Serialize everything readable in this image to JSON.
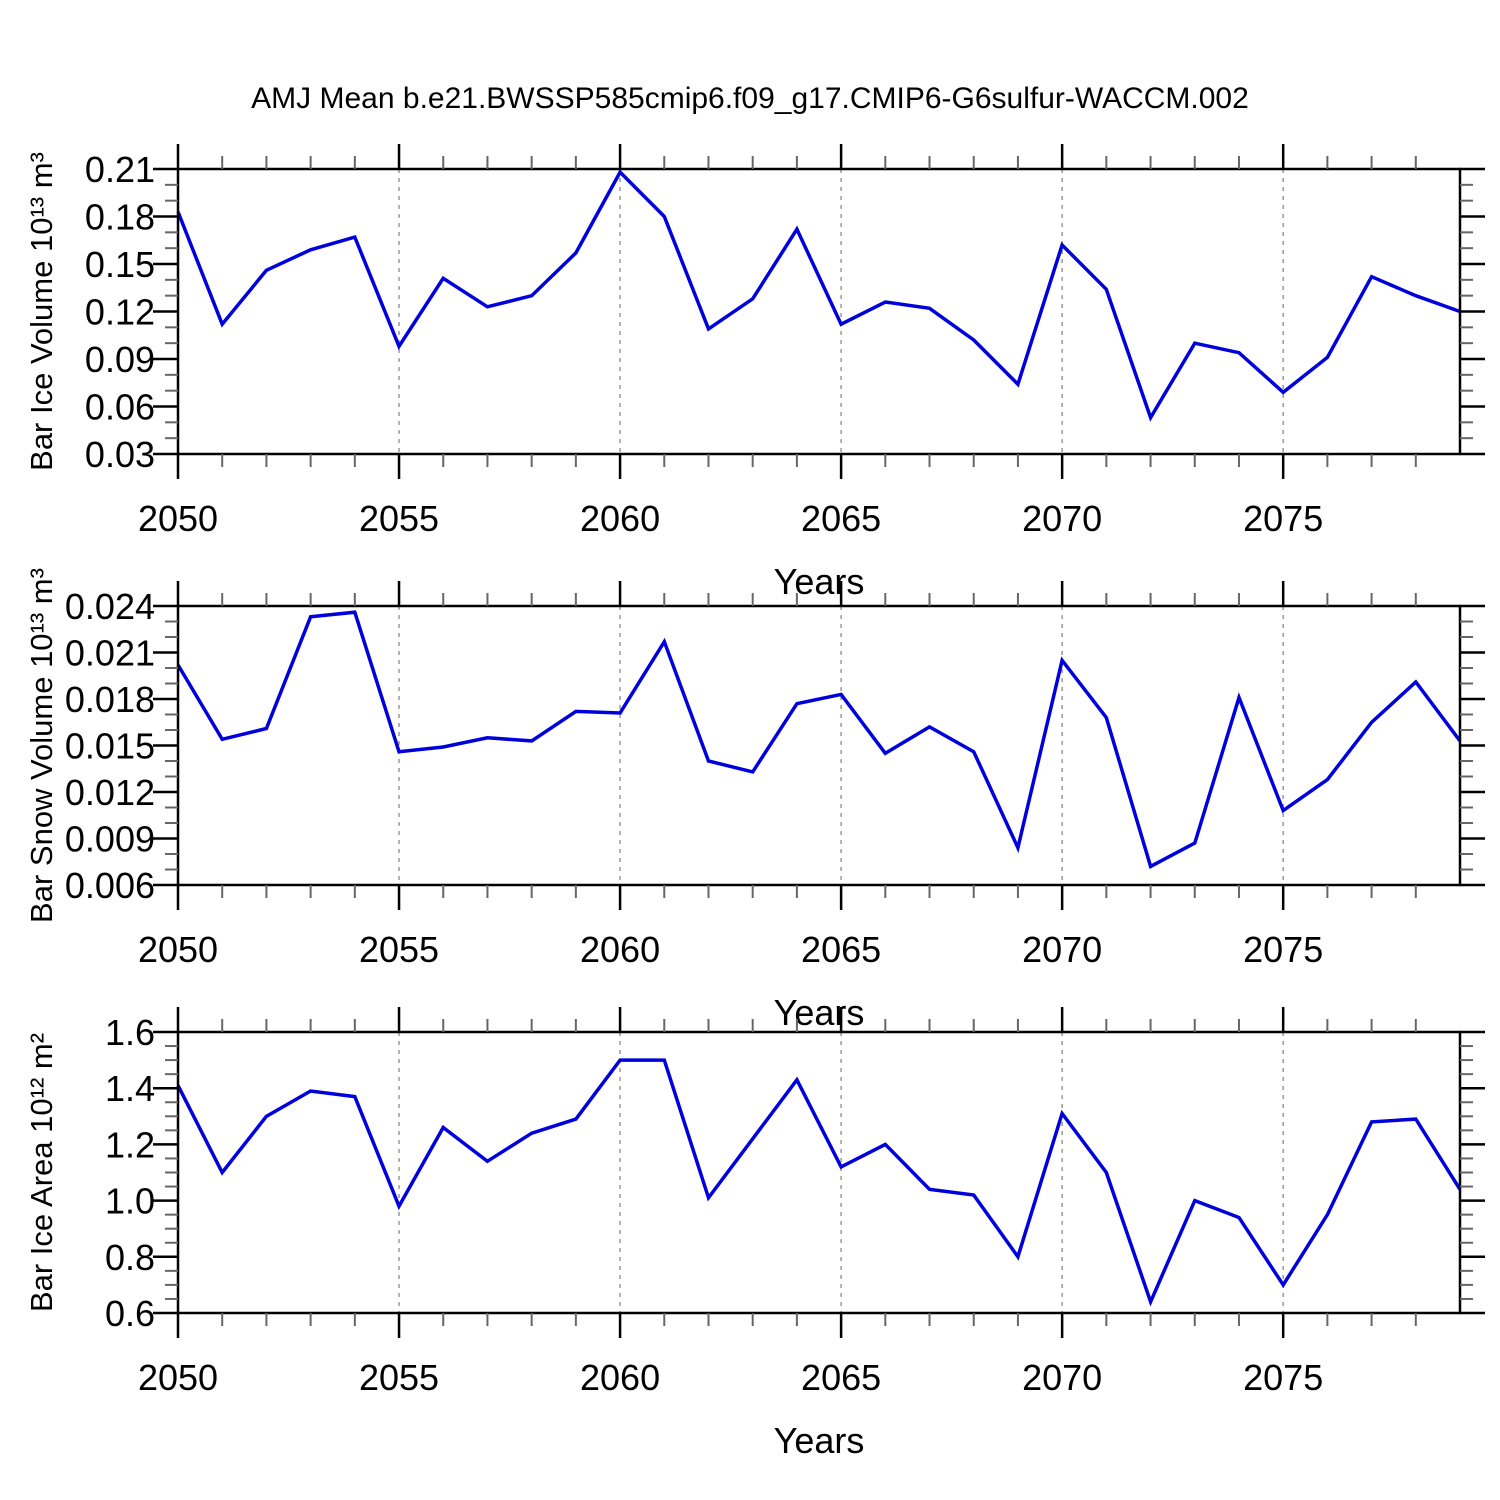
{
  "title": "AMJ Mean b.e21.BWSSP585cmip6.f09_g17.CMIP6-G6sulfur-WACCM.002",
  "colors": {
    "line": "#0000dd",
    "grid": "#999999",
    "axis": "#000000",
    "minor_tick": "#666666",
    "background": "#ffffff"
  },
  "chart_data": [
    {
      "type": "line",
      "name": "panel-ice-volume",
      "xlabel": "Years",
      "ylabel": "Bar Ice Volume 10¹³ m³",
      "x": [
        2050,
        2051,
        2052,
        2053,
        2054,
        2055,
        2056,
        2057,
        2058,
        2059,
        2060,
        2061,
        2062,
        2063,
        2064,
        2065,
        2066,
        2067,
        2068,
        2069,
        2070,
        2071,
        2072,
        2073,
        2074,
        2075,
        2076,
        2077,
        2078,
        2079
      ],
      "values": [
        0.183,
        0.112,
        0.146,
        0.159,
        0.167,
        0.098,
        0.141,
        0.123,
        0.13,
        0.157,
        0.208,
        0.18,
        0.109,
        0.128,
        0.172,
        0.112,
        0.126,
        0.122,
        0.102,
        0.074,
        0.162,
        0.134,
        0.053,
        0.1,
        0.094,
        0.069,
        0.091,
        0.142,
        0.13,
        0.12
      ],
      "xlim": [
        2050,
        2079
      ],
      "ylim": [
        0.03,
        0.21
      ],
      "xticks": [
        2050,
        2055,
        2060,
        2065,
        2070,
        2075
      ],
      "xtick_labels": [
        "2050",
        "2055",
        "2060",
        "2065",
        "2070",
        "2075"
      ],
      "x_minor_step": 1,
      "yticks": [
        0.03,
        0.06,
        0.09,
        0.12,
        0.15,
        0.18,
        0.21
      ],
      "ytick_labels": [
        "0.03",
        "0.06",
        "0.09",
        "0.12",
        "0.15",
        "0.18",
        "0.21"
      ],
      "y_minor_step": 0.01,
      "gridlines_x": [
        2055,
        2060,
        2065,
        2070,
        2075
      ],
      "grid": true,
      "legend": "none"
    },
    {
      "type": "line",
      "name": "panel-snow-volume",
      "xlabel": "Years",
      "ylabel": "Bar Snow Volume 10¹³ m³",
      "x": [
        2050,
        2051,
        2052,
        2053,
        2054,
        2055,
        2056,
        2057,
        2058,
        2059,
        2060,
        2061,
        2062,
        2063,
        2064,
        2065,
        2066,
        2067,
        2068,
        2069,
        2070,
        2071,
        2072,
        2073,
        2074,
        2075,
        2076,
        2077,
        2078,
        2079
      ],
      "values": [
        0.0202,
        0.0154,
        0.0161,
        0.0233,
        0.0236,
        0.0146,
        0.0149,
        0.0155,
        0.0153,
        0.0172,
        0.0171,
        0.0217,
        0.014,
        0.0133,
        0.0177,
        0.0183,
        0.0145,
        0.0162,
        0.0146,
        0.0084,
        0.0205,
        0.0168,
        0.0072,
        0.0087,
        0.0181,
        0.0108,
        0.0128,
        0.0165,
        0.0191,
        0.0153
      ],
      "xlim": [
        2050,
        2079
      ],
      "ylim": [
        0.006,
        0.024
      ],
      "xticks": [
        2050,
        2055,
        2060,
        2065,
        2070,
        2075
      ],
      "xtick_labels": [
        "2050",
        "2055",
        "2060",
        "2065",
        "2070",
        "2075"
      ],
      "x_minor_step": 1,
      "yticks": [
        0.006,
        0.009,
        0.012,
        0.015,
        0.018,
        0.021,
        0.024
      ],
      "ytick_labels": [
        "0.006",
        "0.009",
        "0.012",
        "0.015",
        "0.018",
        "0.021",
        "0.024"
      ],
      "y_minor_step": 0.001,
      "gridlines_x": [
        2055,
        2060,
        2065,
        2070,
        2075
      ],
      "grid": true,
      "legend": "none"
    },
    {
      "type": "line",
      "name": "panel-ice-area",
      "xlabel": "Years",
      "ylabel": "Bar Ice Area 10¹² m²",
      "x": [
        2050,
        2051,
        2052,
        2053,
        2054,
        2055,
        2056,
        2057,
        2058,
        2059,
        2060,
        2061,
        2062,
        2063,
        2064,
        2065,
        2066,
        2067,
        2068,
        2069,
        2070,
        2071,
        2072,
        2073,
        2074,
        2075,
        2076,
        2077,
        2078,
        2079
      ],
      "values": [
        1.41,
        1.1,
        1.3,
        1.39,
        1.37,
        0.98,
        1.26,
        1.14,
        1.24,
        1.29,
        1.5,
        1.5,
        1.01,
        1.22,
        1.43,
        1.12,
        1.2,
        1.04,
        1.02,
        0.8,
        1.31,
        1.1,
        0.64,
        1.0,
        0.94,
        0.7,
        0.95,
        1.28,
        1.29,
        1.04
      ],
      "xlim": [
        2050,
        2079
      ],
      "ylim": [
        0.6,
        1.6
      ],
      "xticks": [
        2050,
        2055,
        2060,
        2065,
        2070,
        2075
      ],
      "xtick_labels": [
        "2050",
        "2055",
        "2060",
        "2065",
        "2070",
        "2075"
      ],
      "x_minor_step": 1,
      "yticks": [
        0.6,
        0.8,
        1.0,
        1.2,
        1.4,
        1.6
      ],
      "ytick_labels": [
        "0.6",
        "0.8",
        "1.0",
        "1.2",
        "1.4",
        "1.6"
      ],
      "y_minor_step": 0.05,
      "gridlines_x": [
        2055,
        2060,
        2065,
        2070,
        2075
      ],
      "grid": true,
      "legend": "none"
    }
  ]
}
